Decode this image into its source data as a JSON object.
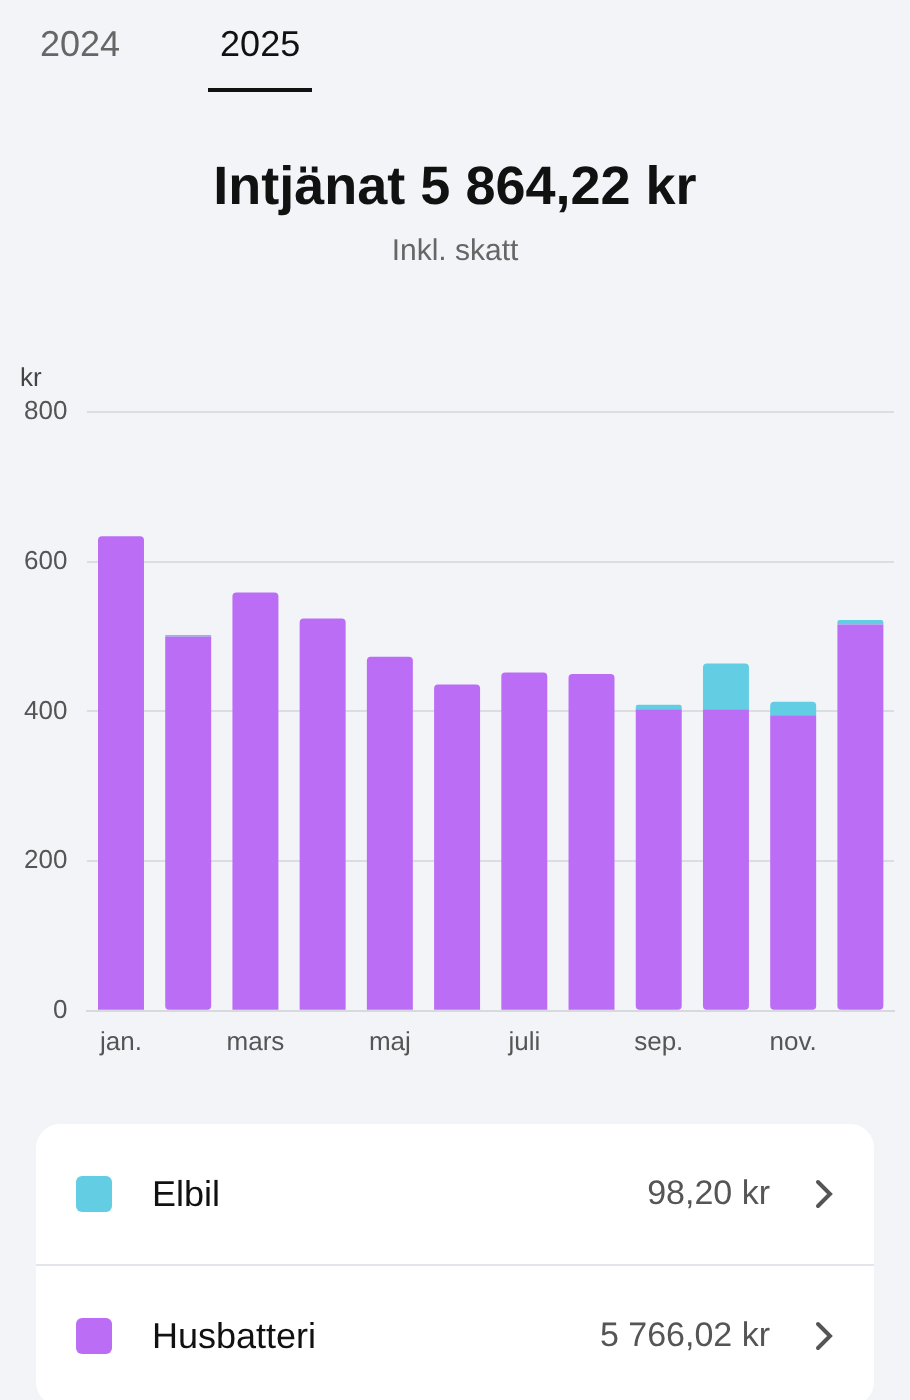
{
  "chart_data": {
    "type": "bar",
    "title": "Intjänat 5 864,22 kr",
    "subtitle": "Inkl. skatt",
    "ylabel": "kr",
    "categories": [
      "jan.",
      null,
      "mars",
      null,
      "maj",
      null,
      "juli",
      null,
      "sep.",
      null,
      "nov.",
      null
    ],
    "stacked": true,
    "series": [
      {
        "name": "Husbatteri",
        "color": "#bb6ef5",
        "values": [
          634,
          500,
          559,
          524,
          473,
          436,
          452,
          450,
          403,
          403,
          395,
          516
        ]
      },
      {
        "name": "Elbil",
        "color": "#62cde3",
        "values": [
          0,
          2,
          0,
          0,
          0,
          0,
          0,
          0,
          6,
          61,
          18,
          6
        ]
      }
    ],
    "ylim": [
      0,
      800
    ],
    "yticks": [
      0,
      200,
      400,
      600,
      800
    ],
    "grid": "y",
    "legend": "bottom",
    "annotations": [
      "2024",
      "2025",
      "5 766,02 kr",
      "98,20 kr"
    ]
  }
}
